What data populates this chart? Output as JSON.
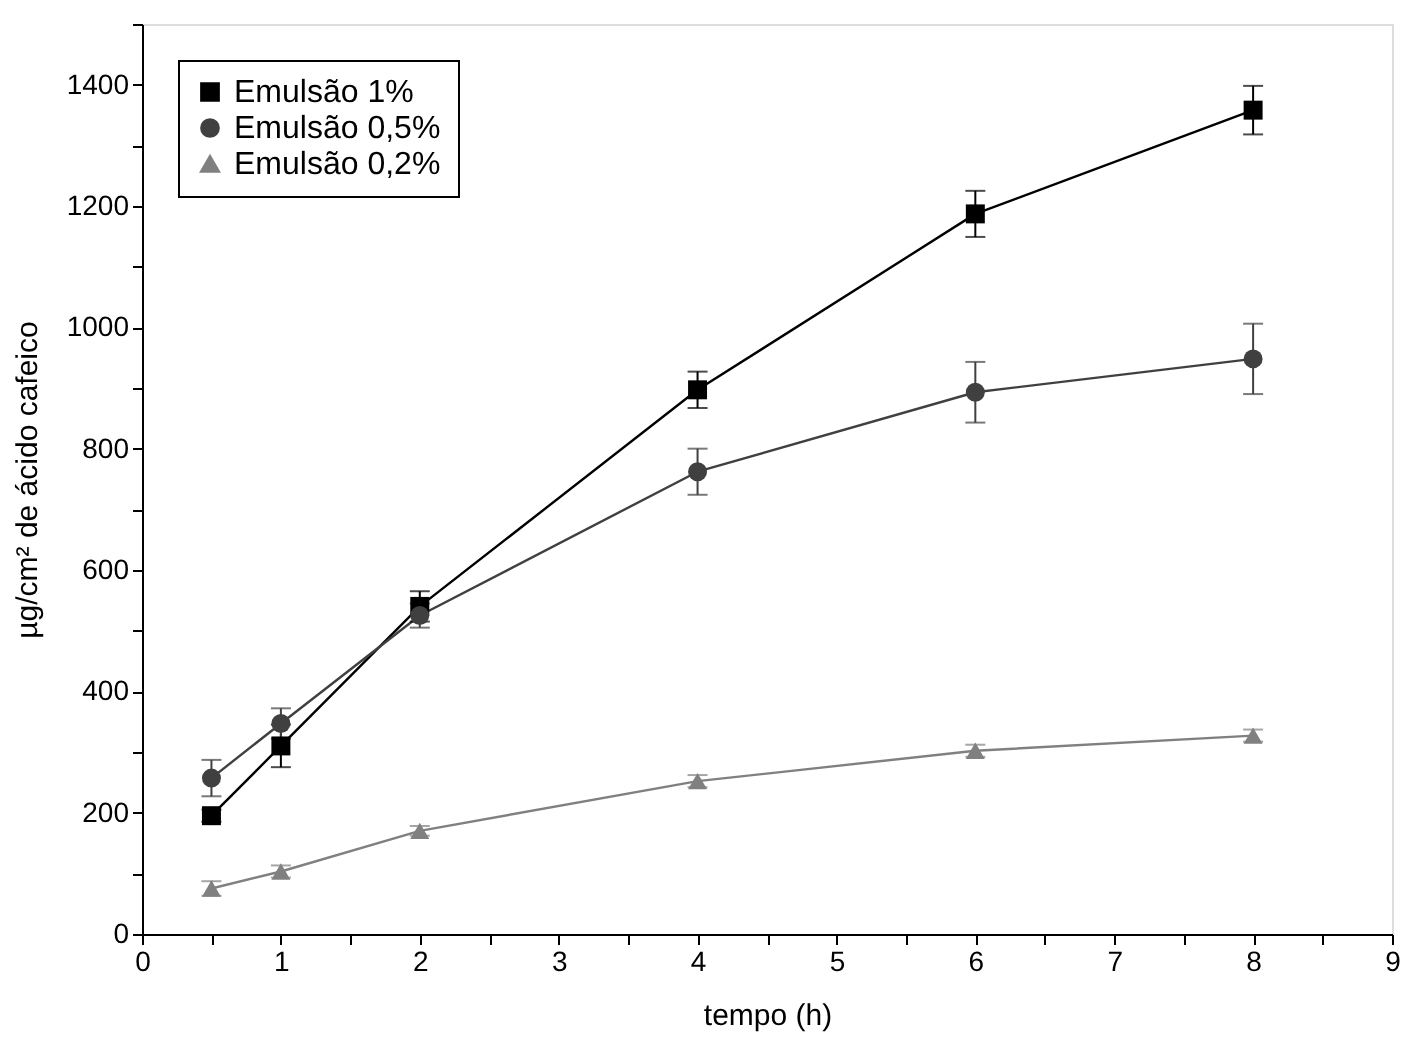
{
  "chart_data": {
    "type": "line",
    "xlabel": "tempo (h)",
    "ylabel": "µg/cm² de ácido cafeico",
    "x": [
      0.5,
      1,
      2,
      4,
      6,
      8
    ],
    "series": [
      {
        "name": "Emulsão 1%",
        "color": "#000000",
        "marker": "square",
        "values": [
          195,
          310,
          540,
          897,
          1187,
          1358
        ],
        "errors": [
          10,
          35,
          25,
          30,
          38,
          40
        ]
      },
      {
        "name": "Emulsão 0,5%",
        "color": "#404040",
        "marker": "circle",
        "values": [
          257,
          347,
          525,
          762,
          893,
          948
        ],
        "errors": [
          30,
          25,
          20,
          38,
          50,
          58
        ]
      },
      {
        "name": "Emulsão 0,2%",
        "color": "#808080",
        "marker": "triangle",
        "values": [
          75,
          103,
          170,
          252,
          302,
          327
        ],
        "errors": [
          12,
          10,
          8,
          10,
          10,
          10
        ]
      }
    ],
    "xlim": [
      0,
      9
    ],
    "xticks": [
      0,
      {
        "value": 0.5,
        "label": null
      },
      1,
      {
        "value": 1.5,
        "label": null
      },
      2,
      {
        "value": 2.5,
        "label": null
      },
      3,
      {
        "value": 3.5,
        "label": null
      },
      4,
      {
        "value": 4.5,
        "label": null
      },
      5,
      {
        "value": 5.5,
        "label": null
      },
      6,
      {
        "value": 6.5,
        "label": null
      },
      7,
      {
        "value": 7.5,
        "label": null
      },
      8,
      {
        "value": 8.5,
        "label": null
      },
      9
    ],
    "ylim": [
      0,
      1500
    ],
    "yticks": [
      0,
      {
        "value": 100,
        "label": null
      },
      200,
      {
        "value": 300,
        "label": null
      },
      400,
      {
        "value": 500,
        "label": null
      },
      600,
      {
        "value": 700,
        "label": null
      },
      800,
      {
        "value": 900,
        "label": null
      },
      1000,
      {
        "value": 1100,
        "label": null
      },
      1200,
      {
        "value": 1300,
        "label": null
      },
      1400,
      {
        "value": 1500,
        "label": null
      }
    ],
    "legend": "top left",
    "grid": false,
    "line_style": "solid"
  }
}
